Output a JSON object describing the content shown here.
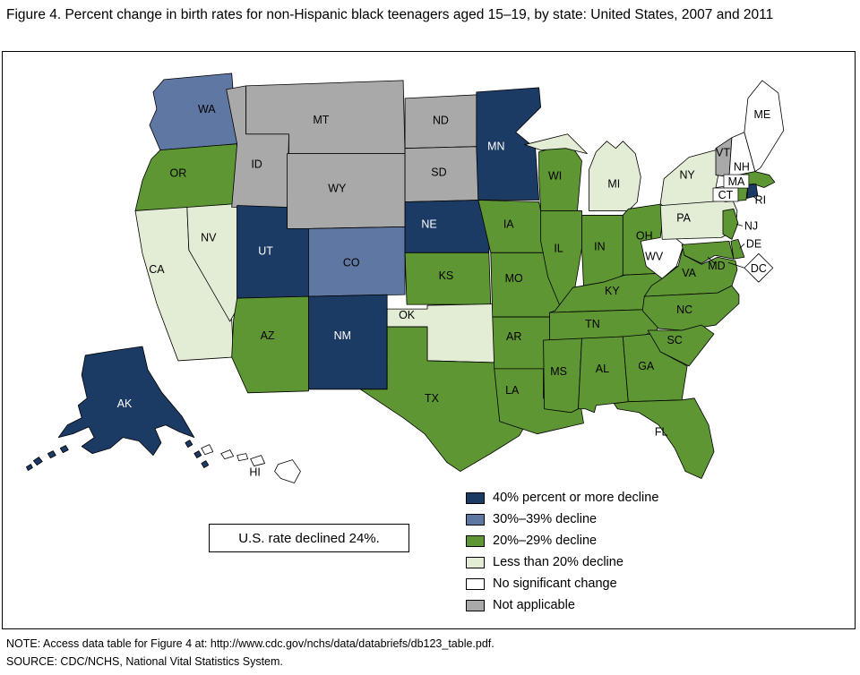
{
  "figure": {
    "title": "Figure 4. Percent change in birth rates for non-Hispanic black teenagers aged 15–19, by state: United States, 2007 and 2011",
    "annotation": "U.S. rate declined 24%.",
    "note": "NOTE: Access data table for Figure 4 at: http://www.cdc.gov/nchs/data/databriefs/db123_table.pdf.",
    "source": "SOURCE: CDC/NCHS, National Vital Statistics System."
  },
  "legend": {
    "items": [
      {
        "key": "decline40plus",
        "label": "40% percent or more decline",
        "color": "#1b3a64"
      },
      {
        "key": "decline30to39",
        "label": "30%–39% decline",
        "color": "#5f77a3"
      },
      {
        "key": "decline20to29",
        "label": "20%–29% decline",
        "color": "#5d9632"
      },
      {
        "key": "declineLt20",
        "label": "Less than 20% decline",
        "color": "#e3ecd4"
      },
      {
        "key": "noChange",
        "label": "No significant change",
        "color": "#ffffff"
      },
      {
        "key": "notApplicable",
        "label": "Not applicable",
        "color": "#a9a9a9"
      }
    ]
  },
  "chart_data": {
    "type": "heatmap",
    "subtype": "us-state-choropleth",
    "title": "Percent change in birth rates for non-Hispanic black teenagers aged 15–19, by state: United States, 2007 and 2011",
    "us_rate_note": "U.S. rate declined 24%.",
    "legend_position": "bottom-right inside map frame",
    "categories": [
      "40% percent or more decline",
      "30%–39% decline",
      "20%–29% decline",
      "Less than 20% decline",
      "No significant change",
      "Not applicable"
    ],
    "states": [
      {
        "state": "AK",
        "category": "decline40plus"
      },
      {
        "state": "MN",
        "category": "decline40plus"
      },
      {
        "state": "NE",
        "category": "decline40plus"
      },
      {
        "state": "NM",
        "category": "decline40plus"
      },
      {
        "state": "RI",
        "category": "decline40plus"
      },
      {
        "state": "UT",
        "category": "decline40plus"
      },
      {
        "state": "CO",
        "category": "decline30to39"
      },
      {
        "state": "WA",
        "category": "decline30to39"
      },
      {
        "state": "AL",
        "category": "decline20to29"
      },
      {
        "state": "AR",
        "category": "decline20to29"
      },
      {
        "state": "AZ",
        "category": "decline20to29"
      },
      {
        "state": "CT",
        "category": "decline20to29"
      },
      {
        "state": "DE",
        "category": "decline20to29"
      },
      {
        "state": "FL",
        "category": "decline20to29"
      },
      {
        "state": "GA",
        "category": "decline20to29"
      },
      {
        "state": "IA",
        "category": "decline20to29"
      },
      {
        "state": "IL",
        "category": "decline20to29"
      },
      {
        "state": "IN",
        "category": "decline20to29"
      },
      {
        "state": "KS",
        "category": "decline20to29"
      },
      {
        "state": "KY",
        "category": "decline20to29"
      },
      {
        "state": "LA",
        "category": "decline20to29"
      },
      {
        "state": "MA",
        "category": "decline20to29"
      },
      {
        "state": "MD",
        "category": "decline20to29"
      },
      {
        "state": "MO",
        "category": "decline20to29"
      },
      {
        "state": "MS",
        "category": "decline20to29"
      },
      {
        "state": "NC",
        "category": "decline20to29"
      },
      {
        "state": "NJ",
        "category": "decline20to29"
      },
      {
        "state": "OH",
        "category": "decline20to29"
      },
      {
        "state": "OR",
        "category": "decline20to29"
      },
      {
        "state": "SC",
        "category": "decline20to29"
      },
      {
        "state": "TN",
        "category": "decline20to29"
      },
      {
        "state": "TX",
        "category": "decline20to29"
      },
      {
        "state": "VA",
        "category": "decline20to29"
      },
      {
        "state": "WI",
        "category": "decline20to29"
      },
      {
        "state": "CA",
        "category": "declineLt20"
      },
      {
        "state": "MI",
        "category": "declineLt20"
      },
      {
        "state": "NV",
        "category": "declineLt20"
      },
      {
        "state": "NY",
        "category": "declineLt20"
      },
      {
        "state": "OK",
        "category": "declineLt20"
      },
      {
        "state": "PA",
        "category": "declineLt20"
      },
      {
        "state": "DC",
        "category": "noChange"
      },
      {
        "state": "HI",
        "category": "noChange"
      },
      {
        "state": "ME",
        "category": "noChange"
      },
      {
        "state": "NH",
        "category": "noChange"
      },
      {
        "state": "WV",
        "category": "noChange"
      },
      {
        "state": "ID",
        "category": "notApplicable"
      },
      {
        "state": "MT",
        "category": "notApplicable"
      },
      {
        "state": "ND",
        "category": "notApplicable"
      },
      {
        "state": "SD",
        "category": "notApplicable"
      },
      {
        "state": "VT",
        "category": "notApplicable"
      },
      {
        "state": "WY",
        "category": "notApplicable"
      }
    ]
  }
}
